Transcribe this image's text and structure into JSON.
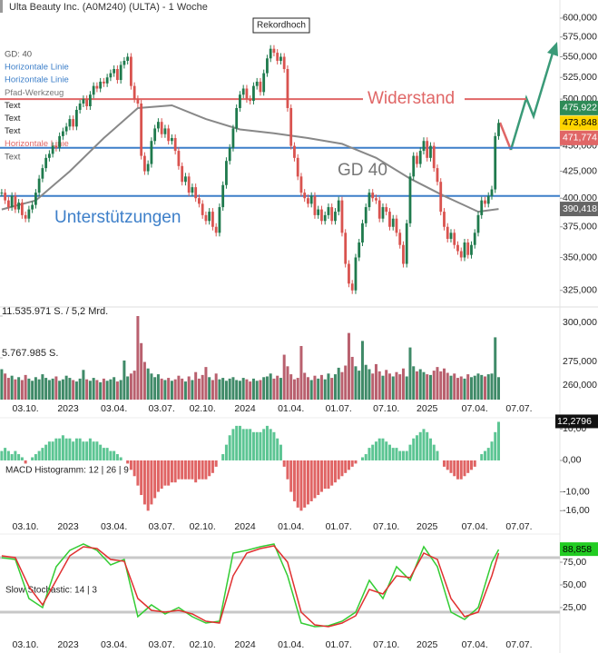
{
  "chart_data": [
    {
      "type": "candlestick",
      "title": "Ulta Beauty Inc. (A0M240) (ULTA) - 1 Woche",
      "log": true,
      "xlim": [
        -0.5,
        164
      ],
      "ylim": [
        315,
        625
      ],
      "yticks": [
        {
          "value": 600,
          "label": "600,000"
        },
        {
          "value": 575,
          "label": "575,000"
        },
        {
          "value": 550,
          "label": "550,000"
        },
        {
          "value": 525,
          "label": "525,000"
        },
        {
          "value": 500,
          "label": "500,000"
        },
        {
          "value": 475,
          "label": "475,000"
        },
        {
          "value": 450,
          "label": "450,000"
        },
        {
          "value": 425,
          "label": "425,000"
        },
        {
          "value": 400,
          "label": "400,000"
        },
        {
          "value": 375,
          "label": "375,000"
        },
        {
          "value": 350,
          "label": "350,000"
        },
        {
          "value": 325,
          "label": "325,000"
        }
      ],
      "color_up": "#1f7a4d",
      "color_down": "#d9534f",
      "values": [
        405,
        398,
        392,
        402,
        390,
        396,
        385,
        382,
        390,
        394,
        405,
        418,
        428,
        438,
        442,
        450,
        448,
        460,
        465,
        470,
        478,
        470,
        488,
        495,
        500,
        492,
        505,
        515,
        512,
        520,
        518,
        525,
        530,
        535,
        522,
        540,
        545,
        550,
        515,
        500,
        495,
        440,
        425,
        432,
        455,
        468,
        475,
        462,
        468,
        455,
        458,
        445,
        430,
        415,
        420,
        405,
        410,
        400,
        395,
        385,
        380,
        388,
        375,
        370,
        392,
        412,
        435,
        448,
        468,
        490,
        505,
        512,
        500,
        498,
        515,
        520,
        508,
        530,
        548,
        560,
        555,
        545,
        550,
        535,
        490,
        450,
        438,
        420,
        405,
        400,
        395,
        402,
        385,
        390,
        380,
        385,
        392,
        380,
        388,
        398,
        370,
        345,
        330,
        325,
        350,
        362,
        378,
        392,
        405,
        400,
        398,
        382,
        392,
        388,
        375,
        382,
        370,
        360,
        345,
        378,
        420,
        440,
        432,
        445,
        455,
        438,
        450,
        428,
        415,
        388,
        375,
        365,
        370,
        360,
        355,
        350,
        362,
        352,
        360,
        370,
        385,
        398,
        395,
        402,
        408,
        460,
        473.848
      ],
      "last_label": "473,848",
      "last_color": "#ffd400",
      "ma": {
        "color": "#888888",
        "x": [
          0,
          10,
          20,
          30,
          40,
          50,
          60,
          70,
          80,
          90,
          100,
          110,
          120,
          130,
          140,
          146
        ],
        "values": [
          390,
          398,
          425,
          458,
          490,
          493,
          478,
          467,
          463,
          458,
          452,
          438,
          418,
          402,
          388,
          390.418
        ],
        "label": "390,418"
      },
      "price_markers": [
        {
          "value": 475.922,
          "label": "475,922",
          "color": "#2e8b57"
        },
        {
          "value": 471.774,
          "label": "471,774",
          "color": "#e06666"
        }
      ],
      "hlines": [
        {
          "value": 500,
          "color": "#e06666",
          "label": "Widerstand"
        },
        {
          "value": 448,
          "color": "#3d7fc9"
        },
        {
          "value": 402,
          "color": "#3d7fc9"
        }
      ],
      "annotations": {
        "support": "Unterstützungen",
        "ma": "GD 40",
        "record": "Rekordhoch"
      },
      "legend_items": [
        {
          "text": "GD: 40",
          "color": "#555555"
        },
        {
          "text": "Horizontale Linie",
          "color": "#3d7fc9"
        },
        {
          "text": "Horizontale Linie",
          "color": "#3d7fc9"
        },
        {
          "text": "Pfad-Werkzeug",
          "color": "#777777"
        },
        {
          "text": "Text",
          "color": "#222222"
        },
        {
          "text": "Text",
          "color": "#222222"
        },
        {
          "text": "Text",
          "color": "#222222"
        },
        {
          "text": "Horizontale Linie",
          "color": "#e06666"
        },
        {
          "text": "Text",
          "color": "#555555"
        }
      ]
    },
    {
      "type": "bar",
      "ylim": [
        0,
        11535971
      ],
      "yticks": [
        {
          "value": 11535971,
          "label": "11.535.971 S. / 5,2 Mrd."
        },
        {
          "value": 5767985,
          "label": "5.767.985 S."
        }
      ],
      "right_labels": [
        "300,000",
        "275,000",
        "260,000"
      ],
      "color_up": "#3f8a68",
      "color_down": "#b9606e",
      "xticks": [
        {
          "value": 7,
          "label": "03.10."
        },
        {
          "value": 19.5,
          "label": "2023"
        },
        {
          "value": 33,
          "label": "03.04."
        },
        {
          "value": 47,
          "label": "03.07."
        },
        {
          "value": 59,
          "label": "02.10."
        },
        {
          "value": 71.5,
          "label": "2024"
        },
        {
          "value": 85,
          "label": "01.04."
        },
        {
          "value": 99,
          "label": "01.07."
        },
        {
          "value": 113,
          "label": "07.10."
        },
        {
          "value": 125,
          "label": "2025"
        },
        {
          "value": 139,
          "label": "07.04."
        },
        {
          "value": 152,
          "label": "07.07."
        }
      ],
      "values": [
        4200000,
        3600000,
        3000000,
        3300000,
        2800000,
        3100000,
        2700000,
        3400000,
        2900000,
        2600000,
        3100000,
        2800000,
        3500000,
        3000000,
        2700000,
        2900000,
        3200000,
        2600000,
        2800000,
        3300000,
        3000000,
        2700000,
        2500000,
        2900000,
        4100000,
        2800000,
        2600000,
        3000000,
        2700000,
        2400000,
        2900000,
        2600000,
        2800000,
        3100000,
        2500000,
        2700000,
        5400000,
        3200000,
        3600000,
        4000000,
        11535971,
        7800000,
        5200000,
        4300000,
        3600000,
        3100000,
        3500000,
        2900000,
        2700000,
        3000000,
        2600000,
        2800000,
        3300000,
        2900000,
        2500000,
        3200000,
        2700000,
        3800000,
        2900000,
        3400000,
        4500000,
        3100000,
        2700000,
        3600000,
        2800000,
        3000000,
        2600000,
        2900000,
        3100000,
        2700000,
        2600000,
        3000000,
        2800000,
        2500000,
        2900000,
        2600000,
        2700000,
        3100000,
        3200000,
        3600000,
        2900000,
        3300000,
        3000000,
        6200000,
        4600000,
        3500000,
        2800000,
        3000000,
        7400000,
        3700000,
        3100000,
        2700000,
        3300000,
        2900000,
        3400000,
        2800000,
        3600000,
        3000000,
        3500000,
        4400000,
        3800000,
        4700000,
        9200000,
        5900000,
        4600000,
        4000000,
        8100000,
        4800000,
        4200000,
        3600000,
        4900000,
        3900000,
        3300000,
        4100000,
        3600000,
        3200000,
        3800000,
        3500000,
        4300000,
        3200000,
        7200000,
        4600000,
        3900000,
        4200000,
        3800000,
        3500000,
        3400000,
        4000000,
        4500000,
        3900000,
        4300000,
        3700000,
        3300000,
        3600000,
        3000000,
        3200000,
        2900000,
        3500000,
        3100000,
        3300000,
        3600000,
        3400000,
        3200000,
        3500000,
        3600000,
        8600000,
        3100000
      ]
    },
    {
      "type": "histogram",
      "label": "MACD Histogramm: 12 | 26 | 9",
      "ylim": [
        -18.5,
        15.3
      ],
      "yticks": [
        {
          "value": 10,
          "label": "10,00"
        },
        {
          "value": 0,
          "label": "0,00"
        },
        {
          "value": -10,
          "label": "-10,00"
        },
        {
          "value": -16,
          "label": "-16,00"
        }
      ],
      "color_up": "#5cc593",
      "color_down": "#e06464",
      "last_label": "12,2796",
      "values": [
        3,
        4,
        3,
        2,
        3,
        2,
        1,
        -1,
        0,
        1,
        2,
        3,
        4,
        5,
        6,
        6,
        7,
        7,
        8,
        7,
        7,
        6,
        7,
        7,
        6,
        6,
        7,
        6,
        6,
        5,
        4,
        4,
        3,
        3,
        2,
        1,
        0,
        -1,
        -3,
        -5,
        -8,
        -11,
        -14,
        -16,
        -14,
        -12,
        -10,
        -9,
        -8,
        -8,
        -7,
        -7,
        -6,
        -6,
        -6,
        -6,
        -6,
        -7,
        -6,
        -6,
        -6,
        -5,
        -4,
        -2,
        0,
        2,
        5,
        8,
        10,
        11,
        11,
        10,
        10,
        10,
        9,
        9,
        9,
        10,
        11,
        10,
        9,
        7,
        5,
        -2,
        -6,
        -10,
        -13,
        -15,
        -16,
        -15,
        -14,
        -13,
        -12,
        -11,
        -10,
        -9,
        -9,
        -8,
        -7,
        -6,
        -5,
        -4,
        -3,
        -2,
        -1,
        0,
        1,
        2,
        4,
        5,
        6,
        7,
        7,
        6,
        5,
        4,
        4,
        3,
        3,
        3,
        5,
        7,
        8,
        9,
        10,
        9,
        7,
        5,
        3,
        0,
        -2,
        -3,
        -4,
        -5,
        -6,
        -6,
        -5,
        -4,
        -3,
        -2,
        0,
        2,
        3,
        4,
        6,
        9,
        12.2796
      ]
    },
    {
      "type": "line",
      "label": "Slow Stochastic: 14 | 3",
      "ylim": [
        -6,
        104
      ],
      "yticks": [
        {
          "value": 75,
          "label": "75,00"
        },
        {
          "value": 50,
          "label": "50,00"
        },
        {
          "value": 25,
          "label": "25,00"
        }
      ],
      "bands": [
        80,
        20
      ],
      "band_color": "#c8c8c8",
      "last_label": "88,858",
      "last_color": "#22cc22",
      "x": [
        0,
        4,
        8,
        12,
        16,
        20,
        24,
        28,
        32,
        36,
        40,
        44,
        48,
        52,
        56,
        60,
        64,
        68,
        72,
        76,
        80,
        84,
        88,
        92,
        96,
        100,
        104,
        108,
        112,
        116,
        120,
        124,
        128,
        132,
        136,
        140,
        144,
        146
      ],
      "series": [
        {
          "color": "#33cc33",
          "values": [
            80,
            78,
            35,
            25,
            70,
            88,
            95,
            88,
            72,
            78,
            15,
            28,
            18,
            25,
            15,
            8,
            10,
            85,
            88,
            92,
            95,
            60,
            8,
            4,
            5,
            10,
            20,
            55,
            35,
            70,
            55,
            92,
            70,
            20,
            12,
            25,
            75,
            88.858
          ]
        },
        {
          "color": "#e03030",
          "values": [
            82,
            80,
            48,
            28,
            55,
            82,
            92,
            90,
            78,
            76,
            35,
            22,
            20,
            22,
            18,
            10,
            8,
            60,
            85,
            90,
            93,
            75,
            20,
            6,
            4,
            8,
            16,
            45,
            40,
            60,
            58,
            85,
            78,
            35,
            15,
            20,
            60,
            85
          ]
        }
      ]
    }
  ]
}
